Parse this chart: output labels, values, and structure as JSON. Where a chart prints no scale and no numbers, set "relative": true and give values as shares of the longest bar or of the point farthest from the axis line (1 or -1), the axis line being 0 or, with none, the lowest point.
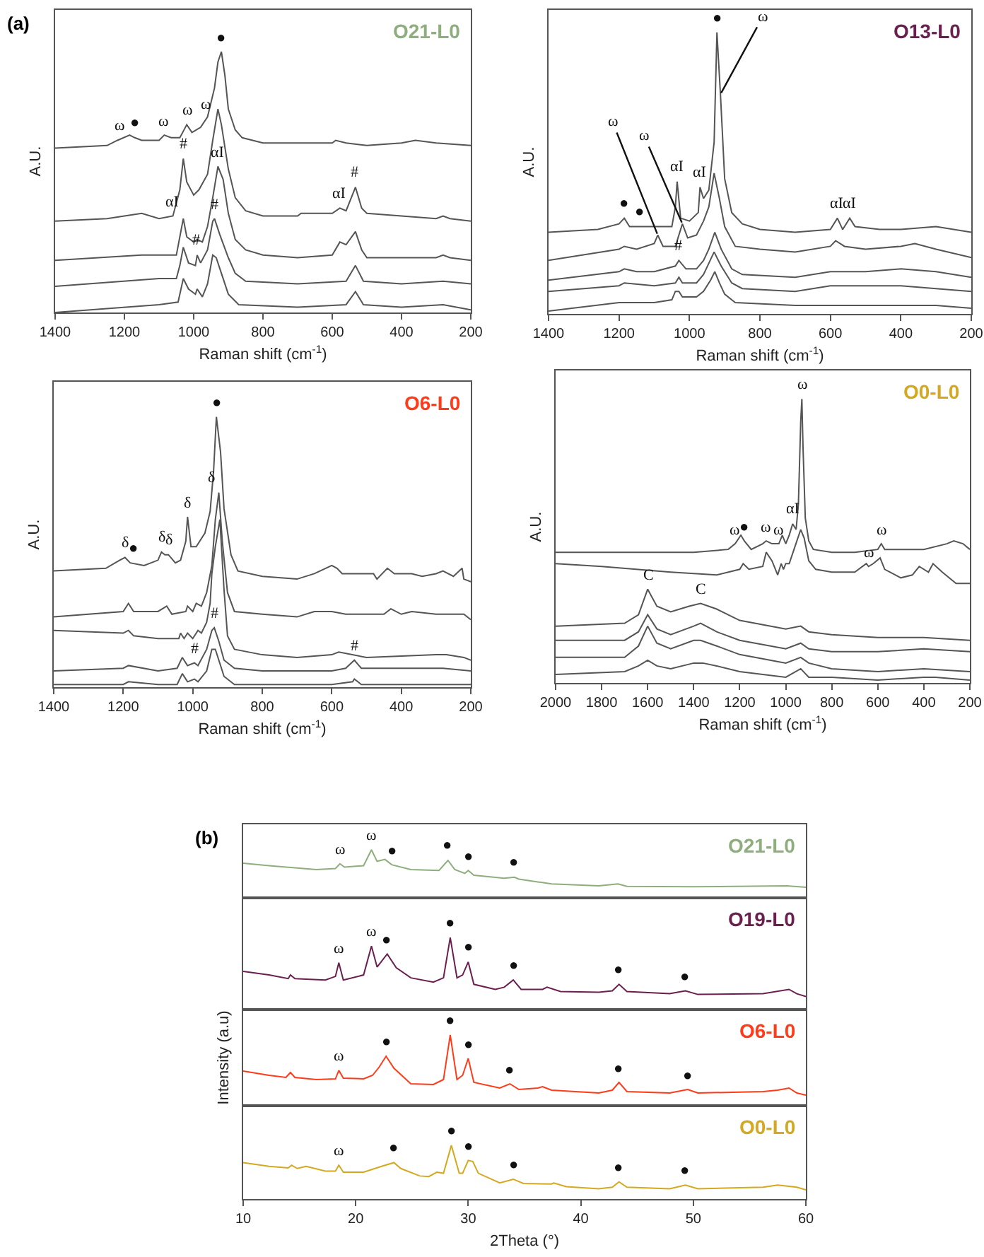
{
  "chart_data": [
    {
      "type": "line",
      "title": "O21-L0",
      "xlabel": "Raman shift (cm$^{-1}$)",
      "ylabel": "A.U.",
      "relative": true,
      "xlim": [
        1400,
        200
      ],
      "xticks": [
        1400,
        1200,
        1000,
        800,
        600,
        400,
        200
      ],
      "tick_labels": "x",
      "annotations": [
        "(a)",
        {
          "text": "ω",
          "x": 1216,
          "y": 0.66
        },
        {
          "text": "●",
          "x": 1169,
          "y": 0.67
        },
        {
          "text": "ω",
          "x": 1088,
          "y": 0.68
        },
        {
          "text": "ω",
          "x": 1018,
          "y": 0.72
        },
        {
          "text": "ω",
          "x": 965,
          "y": 0.74
        },
        {
          "text": "●",
          "x": 920,
          "y": 1
        },
        {
          "text": "αI",
          "x": 1060,
          "y": 0.37
        },
        {
          "text": "#",
          "x": 1030,
          "y": 0.59
        },
        {
          "text": "αI",
          "x": 930,
          "y": 0.56
        },
        {
          "text": "αI",
          "x": 578,
          "y": 0.4
        },
        {
          "text": "#",
          "x": 533,
          "y": 0.48
        },
        {
          "text": "#",
          "x": 940,
          "y": 0.36
        },
        {
          "text": "#",
          "x": 990,
          "y": 0.22
        }
      ],
      "series": [
        {
          "color": "#555555",
          "x": [
            1400,
            1250,
            1220,
            1185,
            1170,
            1150,
            1100,
            1085,
            1065,
            1040,
            1020,
            1005,
            980,
            960,
            940,
            930,
            920,
            910,
            900,
            880,
            860,
            800,
            700,
            600,
            590,
            560,
            500,
            400,
            360,
            300,
            200
          ],
          "values": [
            0.63,
            0.64,
            0.66,
            0.68,
            0.67,
            0.66,
            0.66,
            0.68,
            0.67,
            0.67,
            0.72,
            0.69,
            0.71,
            0.75,
            0.86,
            0.96,
            1,
            0.91,
            0.78,
            0.7,
            0.67,
            0.65,
            0.65,
            0.65,
            0.66,
            0.65,
            0.64,
            0.65,
            0.66,
            0.65,
            0.64
          ]
        },
        {
          "color": "#555555",
          "x": [
            1400,
            1250,
            1150,
            1100,
            1060,
            1040,
            1030,
            1020,
            1000,
            985,
            960,
            945,
            930,
            920,
            900,
            880,
            850,
            800,
            700,
            690,
            600,
            578,
            560,
            533,
            515,
            500,
            400,
            300,
            280,
            260,
            200
          ],
          "values": [
            0.35,
            0.36,
            0.38,
            0.36,
            0.37,
            0.47,
            0.59,
            0.5,
            0.45,
            0.47,
            0.53,
            0.66,
            0.78,
            0.72,
            0.55,
            0.44,
            0.39,
            0.37,
            0.37,
            0.38,
            0.38,
            0.4,
            0.39,
            0.48,
            0.4,
            0.38,
            0.37,
            0.36,
            0.37,
            0.36,
            0.35
          ]
        },
        {
          "color": "#555555",
          "x": [
            1400,
            1150,
            1050,
            1040,
            1030,
            1020,
            1000,
            990,
            975,
            960,
            945,
            930,
            915,
            900,
            880,
            850,
            800,
            700,
            600,
            578,
            560,
            533,
            515,
            500,
            300,
            280,
            260,
            200
          ],
          "values": [
            0.2,
            0.22,
            0.22,
            0.29,
            0.36,
            0.29,
            0.27,
            0.28,
            0.27,
            0.33,
            0.44,
            0.56,
            0.51,
            0.38,
            0.28,
            0.24,
            0.22,
            0.21,
            0.22,
            0.27,
            0.26,
            0.31,
            0.24,
            0.21,
            0.21,
            0.22,
            0.21,
            0.2
          ]
        },
        {
          "color": "#555555",
          "x": [
            1400,
            1100,
            1050,
            1040,
            1030,
            1015,
            995,
            990,
            980,
            960,
            945,
            940,
            925,
            900,
            880,
            850,
            700,
            560,
            533,
            510,
            400,
            280,
            200
          ],
          "values": [
            0.1,
            0.13,
            0.13,
            0.18,
            0.25,
            0.19,
            0.18,
            0.22,
            0.19,
            0.24,
            0.35,
            0.36,
            0.3,
            0.21,
            0.15,
            0.12,
            0.11,
            0.12,
            0.18,
            0.12,
            0.11,
            0.12,
            0.11
          ]
        },
        {
          "color": "#555555",
          "x": [
            1400,
            1100,
            1045,
            1030,
            1015,
            995,
            990,
            975,
            960,
            945,
            935,
            920,
            900,
            870,
            700,
            560,
            533,
            510,
            400,
            280,
            200
          ],
          "values": [
            0,
            0.03,
            0.04,
            0.13,
            0.09,
            0.07,
            0.09,
            0.06,
            0.11,
            0.22,
            0.21,
            0.15,
            0.07,
            0.03,
            0.02,
            0.03,
            0.08,
            0.03,
            0.02,
            0.03,
            0.01
          ]
        }
      ]
    },
    {
      "type": "line",
      "title": "O13-L0",
      "xlabel": "Raman shift (cm$^{-1}$)",
      "ylabel": "A.U.",
      "relative": true,
      "xlim": [
        1400,
        200
      ],
      "xticks": [
        1400,
        1200,
        1000,
        800,
        600,
        400,
        200
      ],
      "tick_labels": "x",
      "annotations": [
        {
          "text": "ω",
          "x": 1090,
          "y": 0.28
        },
        {
          "text": "ω",
          "x": 1020,
          "y": 0.32
        },
        {
          "text": "ω",
          "x": 912,
          "y": 0.78
        },
        {
          "text": "●",
          "x": 922,
          "y": 1
        },
        {
          "text": "●",
          "x": 1185,
          "y": 0.34
        },
        {
          "text": "●",
          "x": 1140,
          "y": 0.31
        },
        {
          "text": "αI",
          "x": 1035,
          "y": 0.47
        },
        {
          "text": "αI",
          "x": 970,
          "y": 0.45
        },
        {
          "text": "αI",
          "x": 580,
          "y": 0.34
        },
        {
          "text": "αI",
          "x": 545,
          "y": 0.34
        },
        {
          "text": "#",
          "x": 1030,
          "y": 0.19
        }
      ],
      "series": [
        {
          "color": "#555555",
          "x": [
            1400,
            1260,
            1200,
            1185,
            1170,
            1140,
            1100,
            1050,
            1040,
            1035,
            1025,
            1000,
            975,
            970,
            960,
            945,
            930,
            922,
            912,
            900,
            880,
            850,
            800,
            700,
            600,
            580,
            565,
            545,
            530,
            460,
            400,
            300,
            200
          ],
          "values": [
            0.29,
            0.3,
            0.32,
            0.34,
            0.31,
            0.31,
            0.31,
            0.31,
            0.38,
            0.47,
            0.34,
            0.33,
            0.36,
            0.45,
            0.41,
            0.44,
            0.61,
            1,
            0.78,
            0.48,
            0.36,
            0.32,
            0.3,
            0.29,
            0.3,
            0.34,
            0.3,
            0.34,
            0.31,
            0.3,
            0.3,
            0.31,
            0.29
          ]
        },
        {
          "color": "#555555",
          "x": [
            1400,
            1200,
            1185,
            1150,
            1100,
            1090,
            1075,
            1040,
            1020,
            1005,
            980,
            960,
            945,
            930,
            915,
            900,
            870,
            800,
            700,
            600,
            585,
            560,
            500,
            400,
            360,
            300,
            200
          ],
          "values": [
            0.19,
            0.23,
            0.24,
            0.23,
            0.25,
            0.28,
            0.24,
            0.24,
            0.32,
            0.27,
            0.28,
            0.33,
            0.38,
            0.5,
            0.41,
            0.31,
            0.24,
            0.23,
            0.22,
            0.24,
            0.26,
            0.24,
            0.23,
            0.24,
            0.25,
            0.23,
            0.2
          ]
        },
        {
          "color": "#555555",
          "x": [
            1400,
            1200,
            1185,
            1150,
            1100,
            1040,
            1030,
            1010,
            980,
            960,
            945,
            928,
            910,
            880,
            850,
            700,
            600,
            500,
            400,
            300,
            200
          ],
          "values": [
            0.12,
            0.15,
            0.16,
            0.15,
            0.15,
            0.17,
            0.19,
            0.16,
            0.16,
            0.19,
            0.23,
            0.29,
            0.23,
            0.16,
            0.14,
            0.13,
            0.15,
            0.15,
            0.16,
            0.15,
            0.13
          ]
        },
        {
          "color": "#555555",
          "x": [
            1400,
            1200,
            1185,
            1100,
            1040,
            1030,
            1020,
            980,
            960,
            945,
            930,
            910,
            880,
            850,
            700,
            600,
            400,
            300,
            200
          ],
          "values": [
            0.08,
            0.1,
            0.11,
            0.1,
            0.11,
            0.13,
            0.11,
            0.11,
            0.14,
            0.18,
            0.22,
            0.17,
            0.11,
            0.09,
            0.08,
            0.1,
            0.1,
            0.09,
            0.08
          ]
        },
        {
          "color": "#555555",
          "x": [
            1400,
            1200,
            1100,
            1050,
            1040,
            1030,
            1020,
            980,
            960,
            940,
            928,
            915,
            900,
            870,
            700,
            600,
            400,
            300,
            200
          ],
          "values": [
            0.01,
            0.04,
            0.04,
            0.05,
            0.08,
            0.08,
            0.06,
            0.06,
            0.08,
            0.12,
            0.15,
            0.11,
            0.07,
            0.04,
            0.03,
            0.03,
            0.03,
            0.03,
            0.02
          ]
        }
      ]
    },
    {
      "type": "line",
      "title": "O6-L0",
      "xlabel": "Raman shift (cm$^{-1}$)",
      "ylabel": "A.U.",
      "relative": true,
      "xlim": [
        1400,
        200
      ],
      "xticks": [
        1400,
        1200,
        1000,
        800,
        600,
        400,
        200
      ],
      "tick_labels": "x",
      "annotations": [
        {
          "text": "δ",
          "x": 1195,
          "y": 0.48
        },
        {
          "text": "●",
          "x": 1170,
          "y": 0.46
        },
        {
          "text": "δ",
          "x": 1090,
          "y": 0.5
        },
        {
          "text": "δ",
          "x": 1070,
          "y": 0.49
        },
        {
          "text": "δ",
          "x": 1015,
          "y": 0.63
        },
        {
          "text": "δ",
          "x": 945,
          "y": 0.72
        },
        {
          "text": "●",
          "x": 932,
          "y": 1
        },
        {
          "text": "#",
          "x": 938,
          "y": 0.22
        },
        {
          "text": "#",
          "x": 995,
          "y": 0.09
        },
        {
          "text": "#",
          "x": 535,
          "y": 0.1
        }
      ],
      "series": [
        {
          "color": "#555555",
          "x": [
            1400,
            1250,
            1210,
            1195,
            1180,
            1140,
            1100,
            1090,
            1080,
            1070,
            1050,
            1035,
            1020,
            1015,
            1005,
            990,
            965,
            950,
            940,
            932,
            920,
            910,
            890,
            870,
            800,
            700,
            650,
            600,
            585,
            570,
            540,
            520,
            480,
            470,
            440,
            420,
            370,
            340,
            300,
            280,
            250,
            225,
            220,
            200
          ],
          "values": [
            0.43,
            0.44,
            0.47,
            0.48,
            0.46,
            0.45,
            0.47,
            0.5,
            0.49,
            0.49,
            0.46,
            0.47,
            0.54,
            0.63,
            0.52,
            0.52,
            0.57,
            0.65,
            0.8,
            1,
            0.87,
            0.66,
            0.49,
            0.43,
            0.41,
            0.4,
            0.42,
            0.45,
            0.44,
            0.42,
            0.42,
            0.42,
            0.42,
            0.4,
            0.44,
            0.42,
            0.42,
            0.41,
            0.42,
            0.43,
            0.41,
            0.44,
            0.4,
            0.39
          ]
        },
        {
          "color": "#555555",
          "x": [
            1400,
            1200,
            1185,
            1170,
            1100,
            1075,
            1060,
            1020,
            1015,
            1000,
            990,
            975,
            960,
            945,
            935,
            925,
            915,
            900,
            880,
            800,
            700,
            650,
            600,
            560,
            450,
            430,
            400,
            370,
            300,
            220,
            200
          ],
          "values": [
            0.26,
            0.28,
            0.31,
            0.28,
            0.28,
            0.3,
            0.27,
            0.28,
            0.3,
            0.28,
            0.31,
            0.3,
            0.35,
            0.45,
            0.62,
            0.72,
            0.54,
            0.35,
            0.28,
            0.27,
            0.26,
            0.28,
            0.28,
            0.27,
            0.27,
            0.29,
            0.27,
            0.28,
            0.27,
            0.27,
            0.25
          ]
        },
        {
          "color": "#555555",
          "x": [
            1400,
            1200,
            1185,
            1170,
            1100,
            1040,
            1035,
            1025,
            1015,
            1000,
            985,
            975,
            960,
            950,
            945,
            935,
            922,
            910,
            900,
            880,
            800,
            700,
            600,
            580,
            500,
            300,
            270,
            220,
            200
          ],
          "values": [
            0.21,
            0.2,
            0.21,
            0.19,
            0.18,
            0.18,
            0.2,
            0.18,
            0.2,
            0.18,
            0.21,
            0.2,
            0.24,
            0.31,
            0.42,
            0.52,
            0.62,
            0.36,
            0.19,
            0.14,
            0.12,
            0.11,
            0.12,
            0.13,
            0.11,
            0.12,
            0.12,
            0.11,
            0.1
          ]
        },
        {
          "color": "#555555",
          "x": [
            1400,
            1200,
            1185,
            1100,
            1045,
            1030,
            1015,
            995,
            985,
            960,
            945,
            938,
            925,
            910,
            880,
            800,
            600,
            560,
            535,
            515,
            400,
            280,
            200
          ],
          "values": [
            0.06,
            0.07,
            0.08,
            0.06,
            0.07,
            0.11,
            0.08,
            0.09,
            0.08,
            0.14,
            0.21,
            0.22,
            0.17,
            0.1,
            0.07,
            0.06,
            0.06,
            0.07,
            0.1,
            0.07,
            0.07,
            0.07,
            0.06
          ]
        },
        {
          "color": "#555555",
          "x": [
            1400,
            1200,
            1185,
            1100,
            1045,
            1030,
            1015,
            995,
            985,
            960,
            945,
            935,
            925,
            910,
            880,
            600,
            540,
            535,
            515,
            280,
            200
          ],
          "values": [
            0.01,
            0.01,
            0.02,
            0.01,
            0.01,
            0.05,
            0.02,
            0.03,
            0.02,
            0.06,
            0.14,
            0.14,
            0.1,
            0.04,
            0.01,
            0.01,
            0.02,
            0.03,
            0.01,
            0.01,
            0.01
          ]
        }
      ]
    },
    {
      "type": "line",
      "title": "O0-L0",
      "xlabel": "Raman shift (cm$^{-1}$)",
      "ylabel": "A.U.",
      "relative": true,
      "xlim": [
        2000,
        200
      ],
      "xticks": [
        2000,
        1800,
        1600,
        1400,
        1200,
        1000,
        800,
        600,
        400,
        200
      ],
      "tick_labels": "x",
      "annotations": [
        {
          "text": "ω",
          "x": 930,
          "y": 1
        },
        {
          "text": "ω",
          "x": 1220,
          "y": 0.49
        },
        {
          "text": "●",
          "x": 1180,
          "y": 0.5
        },
        {
          "text": "ω",
          "x": 1085,
          "y": 0.5
        },
        {
          "text": "ω",
          "x": 1030,
          "y": 0.49
        },
        {
          "text": "αI",
          "x": 970,
          "y": 0.56
        },
        {
          "text": "ω",
          "x": 585,
          "y": 0.49
        },
        {
          "text": "ω",
          "x": 640,
          "y": 0.41
        },
        {
          "text": "C",
          "x": 1600,
          "y": 0.33
        },
        {
          "text": "C",
          "x": 1370,
          "y": 0.28
        }
      ],
      "series": [
        {
          "color": "#555555",
          "x": [
            2000,
            1600,
            1400,
            1250,
            1220,
            1195,
            1180,
            1150,
            1100,
            1085,
            1060,
            1030,
            1015,
            1000,
            985,
            970,
            955,
            945,
            935,
            930,
            925,
            915,
            900,
            880,
            800,
            700,
            600,
            585,
            570,
            500,
            400,
            300,
            270,
            230,
            200
          ],
          "values": [
            0.46,
            0.46,
            0.46,
            0.47,
            0.49,
            0.52,
            0.5,
            0.47,
            0.49,
            0.5,
            0.49,
            0.49,
            0.52,
            0.49,
            0.52,
            0.56,
            0.54,
            0.63,
            0.92,
            1,
            0.83,
            0.58,
            0.5,
            0.47,
            0.46,
            0.46,
            0.47,
            0.49,
            0.47,
            0.47,
            0.47,
            0.49,
            0.5,
            0.49,
            0.47
          ]
        },
        {
          "color": "#555555",
          "x": [
            2000,
            1800,
            1500,
            1300,
            1200,
            1185,
            1160,
            1100,
            1085,
            1060,
            1035,
            1020,
            1010,
            1000,
            985,
            960,
            935,
            920,
            900,
            870,
            800,
            700,
            650,
            640,
            620,
            590,
            570,
            500,
            450,
            420,
            380,
            360,
            320,
            260,
            200
          ],
          "values": [
            0.42,
            0.41,
            0.39,
            0.38,
            0.4,
            0.42,
            0.4,
            0.41,
            0.46,
            0.43,
            0.38,
            0.42,
            0.4,
            0.42,
            0.42,
            0.48,
            0.54,
            0.51,
            0.43,
            0.4,
            0.39,
            0.39,
            0.42,
            0.41,
            0.42,
            0.44,
            0.4,
            0.37,
            0.38,
            0.41,
            0.39,
            0.42,
            0.39,
            0.35,
            0.35
          ]
        },
        {
          "color": "#555555",
          "x": [
            2000,
            1700,
            1640,
            1600,
            1560,
            1500,
            1420,
            1370,
            1300,
            1200,
            1000,
            935,
            900,
            800,
            600,
            400,
            200
          ],
          "values": [
            0.2,
            0.21,
            0.24,
            0.33,
            0.27,
            0.25,
            0.27,
            0.28,
            0.26,
            0.22,
            0.19,
            0.2,
            0.18,
            0.17,
            0.16,
            0.16,
            0.15
          ]
        },
        {
          "color": "#555555",
          "x": [
            2000,
            1700,
            1640,
            1600,
            1560,
            1500,
            1400,
            1370,
            1300,
            1200,
            1000,
            935,
            900,
            800,
            600,
            400,
            200
          ],
          "values": [
            0.15,
            0.15,
            0.18,
            0.24,
            0.19,
            0.17,
            0.2,
            0.21,
            0.18,
            0.15,
            0.12,
            0.14,
            0.12,
            0.11,
            0.11,
            0.12,
            0.11
          ]
        },
        {
          "color": "#555555",
          "x": [
            2000,
            1700,
            1640,
            1600,
            1560,
            1500,
            1400,
            1370,
            1300,
            1200,
            1000,
            935,
            900,
            800,
            600,
            400,
            200
          ],
          "values": [
            0.09,
            0.09,
            0.13,
            0.2,
            0.14,
            0.12,
            0.15,
            0.15,
            0.13,
            0.1,
            0.07,
            0.09,
            0.07,
            0.05,
            0.04,
            0.05,
            0.04
          ]
        },
        {
          "color": "#555555",
          "x": [
            2000,
            1700,
            1640,
            1600,
            1560,
            1500,
            1400,
            1360,
            1300,
            1200,
            1000,
            935,
            900,
            800,
            600,
            400,
            350,
            200
          ],
          "values": [
            0.03,
            0.04,
            0.06,
            0.08,
            0.06,
            0.05,
            0.07,
            0.07,
            0.06,
            0.04,
            0.02,
            0.05,
            0.02,
            0.02,
            0.01,
            0.02,
            0.02,
            0.01
          ]
        }
      ]
    },
    {
      "type": "line",
      "relative": true,
      "xlim": [
        10,
        60
      ],
      "xticks": [
        10,
        20,
        30,
        40,
        50,
        60
      ],
      "tick_labels": false,
      "annotations": [
        "(b)",
        {
          "text": "ω",
          "x": 18.6,
          "y": 0.71
        },
        {
          "text": "ω",
          "x": 21.4,
          "y": 1
        },
        {
          "text": "●",
          "x": 23.2,
          "y": 0.69
        },
        {
          "text": "●",
          "x": 28.2,
          "y": 0.78
        },
        {
          "text": "●",
          "x": 30.0,
          "y": 0.57
        },
        {
          "text": "●",
          "x": 34.1,
          "y": 0.43
        }
      ],
      "series": [
        {
          "name": "O21-L0",
          "color": "#8fae7d",
          "x": [
            10,
            12.3,
            16.5,
            18.2,
            18.6,
            19.0,
            20.7,
            21.4,
            21.9,
            22.6,
            23.2,
            24.9,
            27.4,
            28.2,
            28.8,
            29.7,
            30.0,
            30.5,
            33.2,
            34.1,
            34.5,
            37.4,
            41.6,
            43.3,
            44.1,
            50,
            58.3,
            60
          ],
          "values": [
            0.72,
            0.67,
            0.59,
            0.61,
            0.71,
            0.64,
            0.67,
            1,
            0.76,
            0.8,
            0.69,
            0.59,
            0.57,
            0.78,
            0.59,
            0.51,
            0.57,
            0.47,
            0.41,
            0.43,
            0.39,
            0.29,
            0.25,
            0.29,
            0.24,
            0.23,
            0.25,
            0.22
          ]
        }
      ]
    },
    {
      "type": "line",
      "relative": true,
      "xlim": [
        10,
        60
      ],
      "xticks": [
        10,
        20,
        30,
        40,
        50,
        60
      ],
      "tick_labels": false,
      "annotations": [
        {
          "text": "ω",
          "x": 18.5,
          "y": 0.65
        },
        {
          "text": "ω",
          "x": 21.4,
          "y": 0.88
        },
        {
          "text": "●",
          "x": 22.8,
          "y": 0.77
        },
        {
          "text": "●",
          "x": 28.4,
          "y": 1
        },
        {
          "text": "●",
          "x": 30.0,
          "y": 0.66
        },
        {
          "text": "●",
          "x": 34.0,
          "y": 0.41
        },
        {
          "text": "●",
          "x": 43.4,
          "y": 0.35
        },
        {
          "text": "●",
          "x": 49.3,
          "y": 0.26
        }
      ],
      "series": [
        {
          "name": "O19-L0",
          "color": "#6b1f4f",
          "x": [
            10,
            12.3,
            14.0,
            14.2,
            14.6,
            17.3,
            18.2,
            18.5,
            18.9,
            20.7,
            21.4,
            21.9,
            22.8,
            23.6,
            24.9,
            26.9,
            27.8,
            28.4,
            29.0,
            29.5,
            30.0,
            30.5,
            32.4,
            33.2,
            34.0,
            34.7,
            36.6,
            37.0,
            38.2,
            41.6,
            42.8,
            43.4,
            44.1,
            47.9,
            49.3,
            50.4,
            56.2,
            58.5,
            59.2,
            60
          ],
          "values": [
            0.53,
            0.48,
            0.43,
            0.48,
            0.43,
            0.41,
            0.46,
            0.65,
            0.41,
            0.48,
            0.88,
            0.59,
            0.77,
            0.58,
            0.44,
            0.38,
            0.44,
            1,
            0.44,
            0.48,
            0.66,
            0.35,
            0.28,
            0.31,
            0.41,
            0.28,
            0.28,
            0.31,
            0.25,
            0.24,
            0.26,
            0.35,
            0.25,
            0.22,
            0.26,
            0.21,
            0.22,
            0.28,
            0.22,
            0.18
          ]
        }
      ]
    },
    {
      "type": "line",
      "relative": true,
      "ylabel": "Intensity (a.u)",
      "xlim": [
        10,
        60
      ],
      "xticks": [
        10,
        20,
        30,
        40,
        50,
        60
      ],
      "tick_labels": false,
      "annotations": [
        {
          "text": "ω",
          "x": 18.5,
          "y": 0.5
        },
        {
          "text": "●",
          "x": 22.7,
          "y": 0.7
        },
        {
          "text": "●",
          "x": 28.4,
          "y": 1
        },
        {
          "text": "●",
          "x": 30.0,
          "y": 0.67
        },
        {
          "text": "●",
          "x": 33.7,
          "y": 0.31
        },
        {
          "text": "●",
          "x": 43.4,
          "y": 0.33
        },
        {
          "text": "●",
          "x": 49.5,
          "y": 0.23
        }
      ],
      "series": [
        {
          "name": "O6-L0",
          "color": "#ff3b1a",
          "x": [
            10,
            12.3,
            13.8,
            14.2,
            14.6,
            16.5,
            18.2,
            18.5,
            18.9,
            20.7,
            21.5,
            22.1,
            22.7,
            23.4,
            24.9,
            26.9,
            27.8,
            28.4,
            29.0,
            29.5,
            30.0,
            30.5,
            32.8,
            33.7,
            34.5,
            36.2,
            36.6,
            37.4,
            41.6,
            42.8,
            43.4,
            44.1,
            47.9,
            49.5,
            50.4,
            56.2,
            57.5,
            58.5,
            59.2,
            60
          ],
          "values": [
            0.49,
            0.43,
            0.4,
            0.47,
            0.4,
            0.37,
            0.38,
            0.5,
            0.39,
            0.38,
            0.43,
            0.55,
            0.7,
            0.53,
            0.31,
            0.3,
            0.37,
            1,
            0.37,
            0.43,
            0.67,
            0.33,
            0.25,
            0.31,
            0.23,
            0.25,
            0.27,
            0.22,
            0.18,
            0.22,
            0.33,
            0.2,
            0.18,
            0.23,
            0.18,
            0.2,
            0.22,
            0.25,
            0.18,
            0.15
          ]
        }
      ]
    },
    {
      "type": "line",
      "relative": true,
      "xlabel": "2Theta (°)",
      "xlim": [
        10,
        60
      ],
      "xticks": [
        10,
        20,
        30,
        40,
        50,
        60
      ],
      "tick_labels": "x",
      "annotations": [
        {
          "text": "ω",
          "x": 18.5,
          "y": 0.63
        },
        {
          "text": "●",
          "x": 23.4,
          "y": 0.68
        },
        {
          "text": "●",
          "x": 28.5,
          "y": 1
        },
        {
          "text": "●",
          "x": 30.0,
          "y": 0.72
        },
        {
          "text": "●",
          "x": 34.0,
          "y": 0.37
        },
        {
          "text": "●",
          "x": 43.4,
          "y": 0.32
        },
        {
          "text": "●",
          "x": 49.3,
          "y": 0.26
        }
      ],
      "series": [
        {
          "name": "O0-L0",
          "color": "#d4a820",
          "x": [
            10,
            12.3,
            14.0,
            14.3,
            14.8,
            15.6,
            17.3,
            18.2,
            18.5,
            18.9,
            20.7,
            22.3,
            23.4,
            24.0,
            25.7,
            26.5,
            27.2,
            27.8,
            28.5,
            29.2,
            29.5,
            30.0,
            30.4,
            30.9,
            32.8,
            34.0,
            34.9,
            37.4,
            37.6,
            38.7,
            41.6,
            42.8,
            43.4,
            44.1,
            47.9,
            49.3,
            50.4,
            56.2,
            57.5,
            59.2,
            60
          ],
          "values": [
            0.68,
            0.61,
            0.58,
            0.63,
            0.57,
            0.61,
            0.52,
            0.52,
            0.63,
            0.5,
            0.5,
            0.61,
            0.68,
            0.57,
            0.43,
            0.42,
            0.5,
            0.48,
            1,
            0.48,
            0.48,
            0.72,
            0.7,
            0.48,
            0.3,
            0.37,
            0.29,
            0.28,
            0.3,
            0.23,
            0.19,
            0.22,
            0.32,
            0.22,
            0.19,
            0.26,
            0.19,
            0.22,
            0.26,
            0.22,
            0.17
          ]
        }
      ]
    }
  ]
}
